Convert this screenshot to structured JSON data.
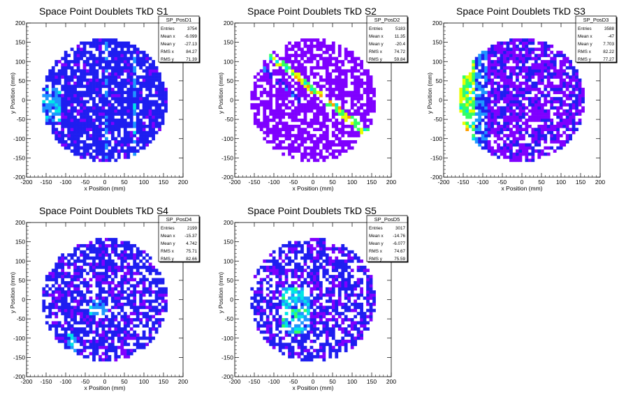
{
  "chart_data": [
    {
      "type": "heatmap",
      "title": "Space Point Doublets TkD S1",
      "xlabel": "x Position (mm)",
      "ylabel": "y Position (mm)",
      "xlim": [
        -200,
        200
      ],
      "ylim": [
        -200,
        200
      ],
      "xticks": [
        -200,
        -150,
        -100,
        -50,
        0,
        50,
        100,
        150,
        200
      ],
      "yticks": [
        -200,
        -150,
        -100,
        -50,
        0,
        50,
        100,
        150,
        200
      ],
      "stats": {
        "name": "SP_PosD1",
        "rows": [
          {
            "label": "Entries",
            "value": "3754"
          },
          {
            "label": "Mean x",
            "value": "-6.099"
          },
          {
            "label": "Mean y",
            "value": "-27.13"
          },
          {
            "label": "RMS x",
            "value": "84.27"
          },
          {
            "label": "RMS y",
            "value": "71.39"
          }
        ]
      },
      "entries": 3754,
      "mean_x": -6.099,
      "mean_y": -27.13,
      "rms_x": 84.27,
      "rms_y": 71.39,
      "radius": 160,
      "pattern": "s1"
    },
    {
      "type": "heatmap",
      "title": "Space Point Doublets TkD S2",
      "xlabel": "x Position (mm)",
      "ylabel": "y Position (mm)",
      "xlim": [
        -200,
        200
      ],
      "ylim": [
        -200,
        200
      ],
      "xticks": [
        -200,
        -150,
        -100,
        -50,
        0,
        50,
        100,
        150,
        200
      ],
      "yticks": [
        -200,
        -150,
        -100,
        -50,
        0,
        50,
        100,
        150,
        200
      ],
      "stats": {
        "name": "SP_PosD2",
        "rows": [
          {
            "label": "Entries",
            "value": "5183"
          },
          {
            "label": "Mean x",
            "value": "11.35"
          },
          {
            "label": "Mean y",
            "value": "-20.4"
          },
          {
            "label": "RMS x",
            "value": "74.72"
          },
          {
            "label": "RMS y",
            "value": "59.84"
          }
        ]
      },
      "entries": 5183,
      "mean_x": 11.35,
      "mean_y": -20.4,
      "rms_x": 74.72,
      "rms_y": 59.84,
      "radius": 160,
      "pattern": "s2"
    },
    {
      "type": "heatmap",
      "title": "Space Point Doublets TkD S3",
      "xlabel": "x Position (mm)",
      "ylabel": "y Position (mm)",
      "xlim": [
        -200,
        200
      ],
      "ylim": [
        -200,
        200
      ],
      "xticks": [
        -200,
        -150,
        -100,
        -50,
        0,
        50,
        100,
        150,
        200
      ],
      "yticks": [
        -200,
        -150,
        -100,
        -50,
        0,
        50,
        100,
        150,
        200
      ],
      "stats": {
        "name": "SP_PosD3",
        "rows": [
          {
            "label": "Entries",
            "value": "3588"
          },
          {
            "label": "Mean x",
            "value": "-47"
          },
          {
            "label": "Mean y",
            "value": "7.703"
          },
          {
            "label": "RMS x",
            "value": "82.22"
          },
          {
            "label": "RMS y",
            "value": "77.27"
          }
        ]
      },
      "entries": 3588,
      "mean_x": -47,
      "mean_y": 7.703,
      "rms_x": 82.22,
      "rms_y": 77.27,
      "radius": 160,
      "pattern": "s3"
    },
    {
      "type": "heatmap",
      "title": "Space Point Doublets TkD S4",
      "xlabel": "x Position (mm)",
      "ylabel": "y Position (mm)",
      "xlim": [
        -200,
        200
      ],
      "ylim": [
        -200,
        200
      ],
      "xticks": [
        -200,
        -150,
        -100,
        -50,
        0,
        50,
        100,
        150,
        200
      ],
      "yticks": [
        -200,
        -150,
        -100,
        -50,
        0,
        50,
        100,
        150,
        200
      ],
      "stats": {
        "name": "SP_PosD4",
        "rows": [
          {
            "label": "Entries",
            "value": "2199"
          },
          {
            "label": "Mean x",
            "value": "-15.37"
          },
          {
            "label": "Mean y",
            "value": "4.742"
          },
          {
            "label": "RMS x",
            "value": "75.71"
          },
          {
            "label": "RMS y",
            "value": "82.66"
          }
        ]
      },
      "entries": 2199,
      "mean_x": -15.37,
      "mean_y": 4.742,
      "rms_x": 75.71,
      "rms_y": 82.66,
      "radius": 160,
      "pattern": "s4"
    },
    {
      "type": "heatmap",
      "title": "Space Point Doublets TkD S5",
      "xlabel": "x Position (mm)",
      "ylabel": "y Position (mm)",
      "xlim": [
        -200,
        200
      ],
      "ylim": [
        -200,
        200
      ],
      "xticks": [
        -200,
        -150,
        -100,
        -50,
        0,
        50,
        100,
        150,
        200
      ],
      "yticks": [
        -200,
        -150,
        -100,
        -50,
        0,
        50,
        100,
        150,
        200
      ],
      "stats": {
        "name": "SP_PosD5",
        "rows": [
          {
            "label": "Entries",
            "value": "3017"
          },
          {
            "label": "Mean x",
            "value": "-14.76"
          },
          {
            "label": "Mean y",
            "value": "-6.077"
          },
          {
            "label": "RMS x",
            "value": "74.67"
          },
          {
            "label": "RMS y",
            "value": "75.59"
          }
        ]
      },
      "entries": 3017,
      "mean_x": -14.76,
      "mean_y": -6.077,
      "rms_x": 74.67,
      "rms_y": 75.59,
      "radius": 160,
      "pattern": "s5"
    }
  ],
  "colors": {
    "palette": [
      "#7f00ff",
      "#1e1ef0",
      "#1e96ff",
      "#00e6e6",
      "#32ff64",
      "#e6ff00",
      "#ffa000",
      "#ff0000"
    ],
    "frame": "#000000",
    "background": "#ffffff"
  }
}
